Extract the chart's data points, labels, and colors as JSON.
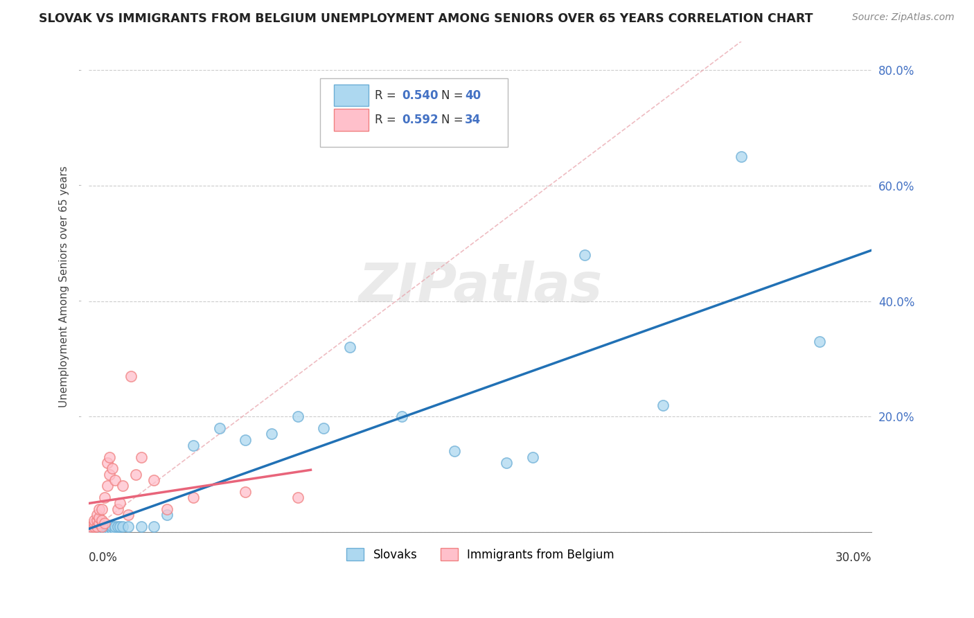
{
  "title": "SLOVAK VS IMMIGRANTS FROM BELGIUM UNEMPLOYMENT AMONG SENIORS OVER 65 YEARS CORRELATION CHART",
  "source_text": "Source: ZipAtlas.com",
  "xlabel_bottom_left": "0.0%",
  "xlabel_bottom_right": "30.0%",
  "ylabel": "Unemployment Among Seniors over 65 years",
  "y_ticks": [
    0.0,
    0.2,
    0.4,
    0.6,
    0.8
  ],
  "y_tick_labels": [
    "",
    "20.0%",
    "40.0%",
    "60.0%",
    "80.0%"
  ],
  "x_min": 0.0,
  "x_max": 0.3,
  "y_min": 0.0,
  "y_max": 0.85,
  "legend_r1": "R = 0.540",
  "legend_n1": "N = 40",
  "legend_r2": "R = 0.592",
  "legend_n2": "N = 34",
  "color_slovak": "#ADD8F0",
  "color_slovak_edge": "#6BAED6",
  "color_slovak_line": "#2171B5",
  "color_belgium": "#FFC0CB",
  "color_belgium_edge": "#F08080",
  "color_belgium_line": "#E8647A",
  "color_dashed": "#E8A0A8",
  "watermark": "ZIPatlas",
  "legend_label1": "Slovaks",
  "legend_label2": "Immigrants from Belgium",
  "slovak_x": [
    0.001,
    0.002,
    0.003,
    0.003,
    0.004,
    0.004,
    0.005,
    0.005,
    0.006,
    0.006,
    0.007,
    0.007,
    0.008,
    0.008,
    0.009,
    0.009,
    0.01,
    0.01,
    0.011,
    0.012,
    0.013,
    0.015,
    0.02,
    0.025,
    0.03,
    0.04,
    0.05,
    0.06,
    0.07,
    0.08,
    0.09,
    0.1,
    0.12,
    0.14,
    0.16,
    0.17,
    0.19,
    0.22,
    0.25,
    0.28
  ],
  "slovak_y": [
    0.005,
    0.005,
    0.005,
    0.01,
    0.005,
    0.01,
    0.005,
    0.01,
    0.005,
    0.01,
    0.005,
    0.01,
    0.005,
    0.01,
    0.005,
    0.01,
    0.005,
    0.01,
    0.01,
    0.01,
    0.01,
    0.01,
    0.01,
    0.01,
    0.03,
    0.15,
    0.18,
    0.16,
    0.17,
    0.2,
    0.18,
    0.32,
    0.2,
    0.14,
    0.12,
    0.13,
    0.48,
    0.22,
    0.65,
    0.33
  ],
  "belgium_x": [
    0.001,
    0.001,
    0.002,
    0.002,
    0.002,
    0.003,
    0.003,
    0.003,
    0.004,
    0.004,
    0.004,
    0.005,
    0.005,
    0.005,
    0.006,
    0.006,
    0.007,
    0.007,
    0.008,
    0.008,
    0.009,
    0.01,
    0.011,
    0.012,
    0.013,
    0.015,
    0.016,
    0.018,
    0.02,
    0.025,
    0.03,
    0.04,
    0.06,
    0.08
  ],
  "belgium_y": [
    0.005,
    0.01,
    0.01,
    0.015,
    0.02,
    0.01,
    0.02,
    0.03,
    0.015,
    0.025,
    0.04,
    0.01,
    0.02,
    0.04,
    0.015,
    0.06,
    0.08,
    0.12,
    0.1,
    0.13,
    0.11,
    0.09,
    0.04,
    0.05,
    0.08,
    0.03,
    0.27,
    0.1,
    0.13,
    0.09,
    0.04,
    0.06,
    0.07,
    0.06
  ],
  "tick_color": "#4472C4"
}
